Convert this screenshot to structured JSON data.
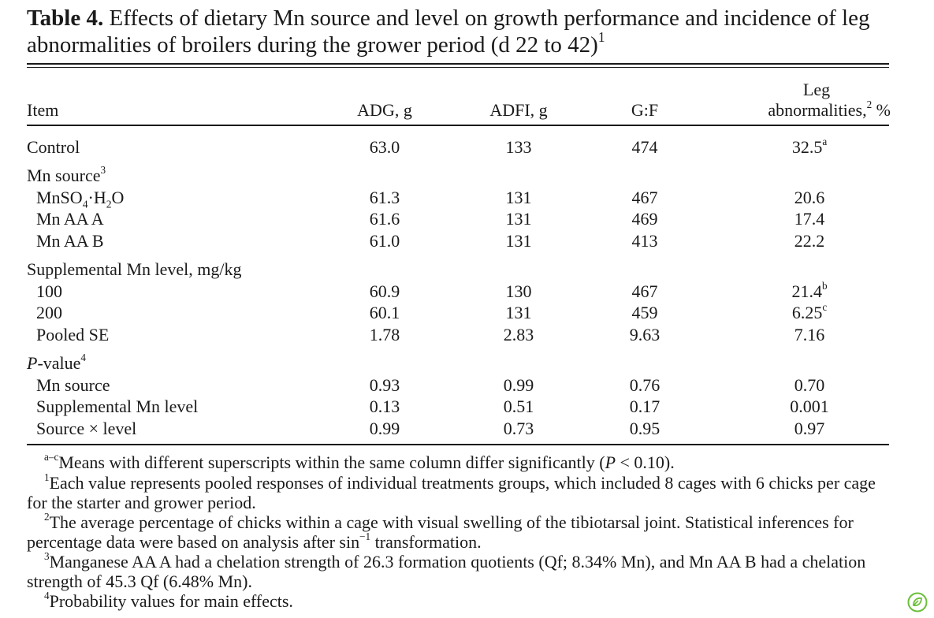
{
  "caption": {
    "label": "Table 4.",
    "text": "Effects of dietary Mn source and level on growth performance and incidence of leg abnormalities of broilers during the grower period (d 22 to 42)",
    "sup": "1"
  },
  "header": {
    "item": "Item",
    "adg": "ADG, g",
    "adfi": "ADFI, g",
    "gf": "G:F",
    "leg_line1": "Leg",
    "leg_line2": "abnormalities,",
    "leg_sup": "2",
    "leg_unit": "%"
  },
  "rows": {
    "control": {
      "label": "Control",
      "adg": "63.0",
      "adfi": "133",
      "gf": "474",
      "leg": "32.5",
      "leg_sup": "a"
    },
    "mn_source_heading": {
      "label": "Mn source",
      "sup": "3"
    },
    "mnso4": {
      "label_a": "MnSO",
      "sub1": "4",
      "label_b": "·H",
      "sub2": "2",
      "label_c": "O",
      "adg": "61.3",
      "adfi": "131",
      "gf": "467",
      "leg": "20.6"
    },
    "mnaa_a": {
      "label": "Mn AA A",
      "adg": "61.6",
      "adfi": "131",
      "gf": "469",
      "leg": "17.4"
    },
    "mnaa_b": {
      "label": "Mn AA B",
      "adg": "61.0",
      "adfi": "131",
      "gf": "413",
      "leg": "22.2"
    },
    "level_heading": {
      "label": "Supplemental Mn level, mg/kg"
    },
    "l100": {
      "label": "100",
      "adg": "60.9",
      "adfi": "130",
      "gf": "467",
      "leg": "21.4",
      "leg_sup": "b"
    },
    "l200": {
      "label": "200",
      "adg": "60.1",
      "adfi": "131",
      "gf": "459",
      "leg": "6.25",
      "leg_sup": "c"
    },
    "pooled": {
      "label": "Pooled SE",
      "adg": "1.78",
      "adfi": "2.83",
      "gf": "9.63",
      "leg": "7.16"
    },
    "pvalue_heading": {
      "label_italic": "P",
      "label_rest": "-value",
      "sup": "4"
    },
    "p_source": {
      "label": "Mn source",
      "adg": "0.93",
      "adfi": "0.99",
      "gf": "0.76",
      "leg": "0.70"
    },
    "p_level": {
      "label": "Supplemental Mn level",
      "adg": "0.13",
      "adfi": "0.51",
      "gf": "0.17",
      "leg": "0.001"
    },
    "p_inter": {
      "label": "Source × level",
      "adg": "0.99",
      "adfi": "0.73",
      "gf": "0.95",
      "leg": "0.97"
    }
  },
  "footnotes": {
    "ac_mark": "a–c",
    "ac_text_a": "Means with different superscripts within the same column differ significantly (",
    "ac_p": "P",
    "ac_text_b": " < 0.10).",
    "f1_mark": "1",
    "f1_text": "Each value represents pooled responses of individual treatments groups, which included 8 cages with 6 chicks per cage for the starter and grower period.",
    "f2_mark": "2",
    "f2_text_a": "The average percentage of chicks within a cage with visual swelling of the tibiotarsal joint. Statistical inferences for percentage data were based on analysis after sin",
    "f2_sup": "−1",
    "f2_text_b": " transformation.",
    "f3_mark": "3",
    "f3_text": "Manganese AA A had a chelation strength of 26.3 formation quotients (Qf; 8.34% Mn), and Mn AA B had a chelation strength of 45.3 Qf (6.48% Mn).",
    "f4_mark": "4",
    "f4_text": "Probability values for main effects."
  },
  "icons": {
    "corner": "leaf-logo-icon"
  },
  "colors": {
    "text": "#1a1a1a",
    "logo": "#6bbf3a"
  }
}
